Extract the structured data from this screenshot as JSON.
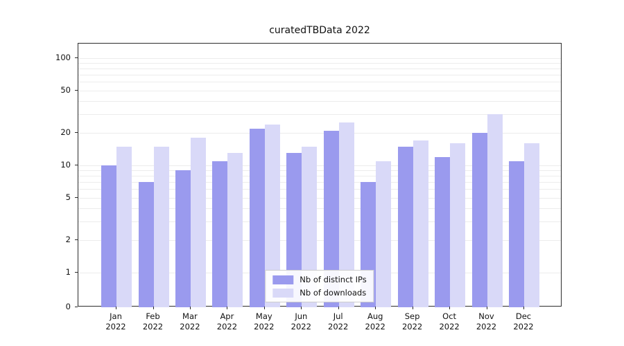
{
  "chart_data": {
    "type": "bar",
    "title": "curatedTBData 2022",
    "categories": [
      "Jan",
      "Feb",
      "Mar",
      "Apr",
      "May",
      "Jun",
      "Jul",
      "Aug",
      "Sep",
      "Oct",
      "Nov",
      "Dec"
    ],
    "year_label": "2022",
    "series": [
      {
        "name": "Nb of distinct IPs",
        "color": "#9a9aee",
        "values": [
          10,
          7,
          9,
          11,
          22,
          13,
          21,
          7,
          15,
          12,
          20,
          11
        ]
      },
      {
        "name": "Nb of downloads",
        "color": "#d9d9f8",
        "values": [
          15,
          15,
          18,
          13,
          24,
          15,
          25,
          11,
          17,
          16,
          30,
          16
        ]
      }
    ],
    "yscale": "symlog",
    "yticks": [
      0,
      1,
      2,
      5,
      10,
      20,
      50,
      100
    ],
    "ylim": [
      0,
      137
    ],
    "grid": true,
    "gridline_values": [
      1,
      2,
      3,
      4,
      5,
      6,
      7,
      8,
      9,
      10,
      20,
      30,
      40,
      50,
      60,
      70,
      80,
      90,
      100
    ],
    "legend_position": "lower center",
    "colors": {
      "spine": "#2b2b2b",
      "grid": "#ececec",
      "text": "#111111",
      "legend_border": "#cccccc"
    }
  }
}
